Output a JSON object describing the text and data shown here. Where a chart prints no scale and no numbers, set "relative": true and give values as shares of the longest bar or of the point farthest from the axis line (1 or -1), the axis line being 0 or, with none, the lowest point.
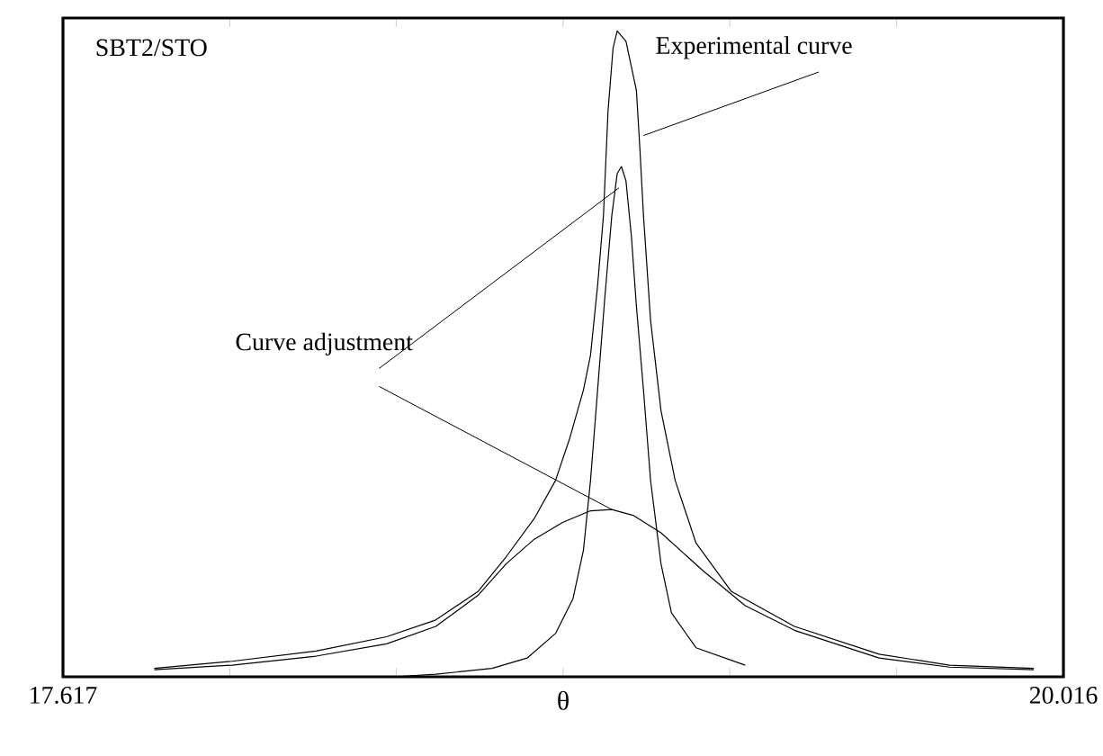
{
  "chart_data": {
    "type": "line",
    "relative": true,
    "xlabel": "θ",
    "xlim": [
      17.617,
      20.016
    ],
    "xticks": [
      17.617,
      {
        "value": 18.017,
        "label": null
      },
      {
        "value": 18.416,
        "label": null
      },
      {
        "value": 18.816,
        "label": null
      },
      {
        "value": 19.216,
        "label": null
      },
      {
        "value": 19.616,
        "label": null
      },
      20.016
    ],
    "tick_labels": "x",
    "annotations": [
      "SBT2/STO",
      {
        "text": "Experimental curve",
        "x": 19.009,
        "y": 0.838
      },
      {
        "text": "Curve adjustment",
        "x": 18.95,
        "y": 0.757
      }
    ],
    "series": [
      {
        "color": "#000000",
        "x": [
          17.836,
          18.022,
          18.224,
          18.393,
          18.511,
          18.612,
          18.68,
          18.747,
          18.798,
          18.832,
          18.865,
          18.882,
          18.899,
          18.913,
          18.924,
          18.936,
          18.946,
          18.967,
          18.992,
          19.0,
          19.009,
          19.026,
          19.051,
          19.085,
          19.135,
          19.22,
          19.371,
          19.574,
          19.743,
          19.945
        ],
        "values": [
          0.013,
          0.024,
          0.04,
          0.062,
          0.088,
          0.132,
          0.186,
          0.245,
          0.304,
          0.369,
          0.444,
          0.498,
          0.606,
          0.714,
          0.876,
          0.973,
          1,
          0.984,
          0.908,
          0.822,
          0.714,
          0.552,
          0.412,
          0.304,
          0.207,
          0.132,
          0.078,
          0.035,
          0.018,
          0.013
        ]
      },
      {
        "color": "#000000",
        "x": [
          18.41,
          18.511,
          18.646,
          18.73,
          18.798,
          18.84,
          18.865,
          18.882,
          18.899,
          18.916,
          18.933,
          18.946,
          18.956,
          18.967,
          18.98,
          18.992,
          19.009,
          19.026,
          19.051,
          19.076,
          19.135,
          19.253
        ],
        "values": [
          0,
          0.004,
          0.013,
          0.029,
          0.067,
          0.121,
          0.196,
          0.304,
          0.444,
          0.585,
          0.714,
          0.779,
          0.79,
          0.768,
          0.682,
          0.574,
          0.444,
          0.304,
          0.175,
          0.099,
          0.045,
          0.018
        ]
      },
      {
        "color": "#000000",
        "x": [
          17.836,
          18.022,
          18.224,
          18.393,
          18.511,
          18.612,
          18.68,
          18.747,
          18.815,
          18.882,
          18.933,
          18.984,
          19.051,
          19.152,
          19.253,
          19.371,
          19.574,
          19.743,
          19.945
        ],
        "values": [
          0.011,
          0.018,
          0.032,
          0.051,
          0.078,
          0.126,
          0.175,
          0.213,
          0.239,
          0.257,
          0.259,
          0.25,
          0.223,
          0.164,
          0.11,
          0.072,
          0.029,
          0.015,
          0.011
        ]
      }
    ]
  }
}
